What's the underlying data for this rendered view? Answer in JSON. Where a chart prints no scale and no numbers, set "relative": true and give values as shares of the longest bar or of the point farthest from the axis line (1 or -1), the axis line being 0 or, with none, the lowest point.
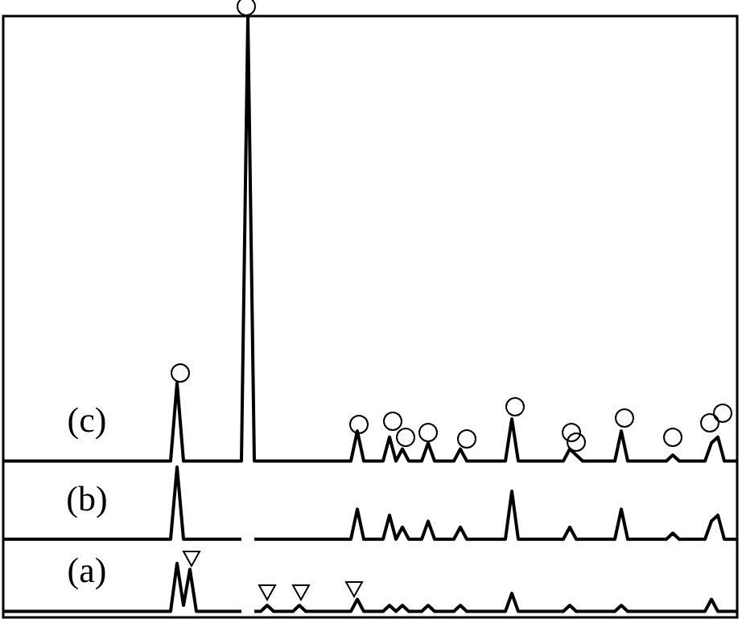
{
  "chart_data": {
    "type": "line",
    "relative": true,
    "categories": [
      null,
      null,
      null,
      null,
      null,
      null,
      null,
      null,
      null,
      null,
      null,
      null,
      null,
      null,
      null,
      null,
      null,
      null,
      null,
      null,
      null,
      null,
      null,
      null,
      null,
      null,
      null,
      null,
      null,
      null,
      null,
      null,
      null,
      null,
      null,
      null,
      null,
      null,
      null,
      null,
      null,
      null,
      null,
      null,
      null,
      null,
      null,
      null,
      null,
      null,
      null,
      null,
      null,
      null,
      null,
      null,
      null,
      null,
      null,
      null,
      null,
      null,
      null,
      null,
      null,
      null,
      null,
      null,
      null,
      null,
      null,
      null,
      null,
      null,
      null,
      null,
      null,
      null,
      null,
      null,
      null,
      null,
      null,
      null,
      null,
      null,
      null,
      null,
      null,
      null,
      null,
      null,
      null,
      null,
      null,
      null,
      null,
      null,
      null,
      null,
      null,
      null,
      null,
      null,
      null,
      null,
      null,
      null,
      null,
      null,
      null,
      null,
      null,
      null,
      null
    ],
    "series": [
      {
        "name": "(c)",
        "color": "#000000",
        "values": [
          0.26,
          0.26,
          0.26,
          0.26,
          0.26,
          0.26,
          0.26,
          0.26,
          0.26,
          0.26,
          0.26,
          0.26,
          0.26,
          0.26,
          0.26,
          0.26,
          0.26,
          0.26,
          0.26,
          0.26,
          0.26,
          0.26,
          0.26,
          0.26,
          0.26,
          0.26,
          0.26,
          0.39,
          0.26,
          0.26,
          0.26,
          0.26,
          0.26,
          0.26,
          0.26,
          0.26,
          0.26,
          0.26,
          1,
          0.26,
          0.26,
          0.26,
          0.26,
          0.26,
          0.26,
          0.26,
          0.26,
          0.26,
          0.26,
          0.26,
          0.26,
          0.26,
          0.26,
          0.26,
          0.26,
          0.31,
          0.26,
          0.26,
          0.26,
          0.26,
          0.3,
          0.26,
          0.28,
          0.26,
          0.26,
          0.26,
          0.29,
          0.26,
          0.26,
          0.26,
          0.26,
          0.28,
          0.26,
          0.26,
          0.26,
          0.26,
          0.26,
          0.26,
          0.26,
          0.33,
          0.26,
          0.26,
          0.26,
          0.26,
          0.26,
          0.26,
          0.26,
          0.26,
          0.28,
          0.27,
          0.26,
          0.26,
          0.26,
          0.26,
          0.26,
          0.26,
          0.31,
          0.26,
          0.26,
          0.26,
          0.26,
          0.26,
          0.26,
          0.26,
          0.27,
          0.26,
          0.26,
          0.26,
          0.26,
          0.26,
          0.29,
          0.3,
          0.26,
          0.26,
          0.26
        ]
      },
      {
        "name": "(b)",
        "color": "#000000",
        "values": [
          0.13,
          0.13,
          0.13,
          0.13,
          0.13,
          0.13,
          0.13,
          0.13,
          0.13,
          0.13,
          0.13,
          0.13,
          0.13,
          0.13,
          0.13,
          0.13,
          0.13,
          0.13,
          0.13,
          0.13,
          0.13,
          0.13,
          0.13,
          0.13,
          0.13,
          0.13,
          0.13,
          0.25,
          0.13,
          0.13,
          0.13,
          0.13,
          0.13,
          0.13,
          0.13,
          0.13,
          0.13,
          0.13,
          null,
          0.13,
          0.13,
          0.13,
          0.13,
          0.13,
          0.13,
          0.13,
          0.13,
          0.13,
          0.13,
          0.13,
          0.13,
          0.13,
          0.13,
          0.13,
          0.13,
          0.18,
          0.13,
          0.13,
          0.13,
          0.13,
          0.17,
          0.13,
          0.15,
          0.13,
          0.13,
          0.13,
          0.16,
          0.13,
          0.13,
          0.13,
          0.13,
          0.15,
          0.13,
          0.13,
          0.13,
          0.13,
          0.13,
          0.13,
          0.13,
          0.21,
          0.13,
          0.13,
          0.13,
          0.13,
          0.13,
          0.13,
          0.13,
          0.13,
          0.15,
          0.13,
          0.13,
          0.13,
          0.13,
          0.13,
          0.13,
          0.13,
          0.18,
          0.13,
          0.13,
          0.13,
          0.13,
          0.13,
          0.13,
          0.13,
          0.14,
          0.13,
          0.13,
          0.13,
          0.13,
          0.13,
          0.16,
          0.17,
          0.13,
          0.13,
          0.13
        ]
      },
      {
        "name": "(a)",
        "color": "#000000",
        "values": [
          0.01,
          0.01,
          0.01,
          0.01,
          0.01,
          0.01,
          0.01,
          0.01,
          0.01,
          0.01,
          0.01,
          0.01,
          0.01,
          0.01,
          0.01,
          0.01,
          0.01,
          0.01,
          0.01,
          0.01,
          0.01,
          0.01,
          0.01,
          0.01,
          0.01,
          0.01,
          0.01,
          0.09,
          0.02,
          0.08,
          0.01,
          0.01,
          0.01,
          0.01,
          0.01,
          0.01,
          0.01,
          0.01,
          null,
          0.01,
          0.01,
          0.02,
          0.01,
          0.01,
          0.01,
          0.01,
          0.02,
          0.01,
          0.01,
          0.01,
          0.01,
          0.01,
          0.01,
          0.01,
          0.01,
          0.03,
          0.01,
          0.01,
          0.01,
          0.01,
          0.02,
          0.01,
          0.02,
          0.01,
          0.01,
          0.01,
          0.02,
          0.01,
          0.01,
          0.01,
          0.01,
          0.02,
          0.01,
          0.01,
          0.01,
          0.01,
          0.01,
          0.01,
          0.01,
          0.04,
          0.01,
          0.01,
          0.01,
          0.01,
          0.01,
          0.01,
          0.01,
          0.01,
          0.02,
          0.01,
          0.01,
          0.01,
          0.01,
          0.01,
          0.01,
          0.01,
          0.02,
          0.01,
          0.01,
          0.01,
          0.01,
          0.01,
          0.01,
          0.01,
          0.01,
          0.01,
          0.01,
          0.01,
          0.01,
          0.01,
          0.03,
          0.01,
          0.01,
          0.01,
          0.01
        ]
      }
    ]
  }
}
